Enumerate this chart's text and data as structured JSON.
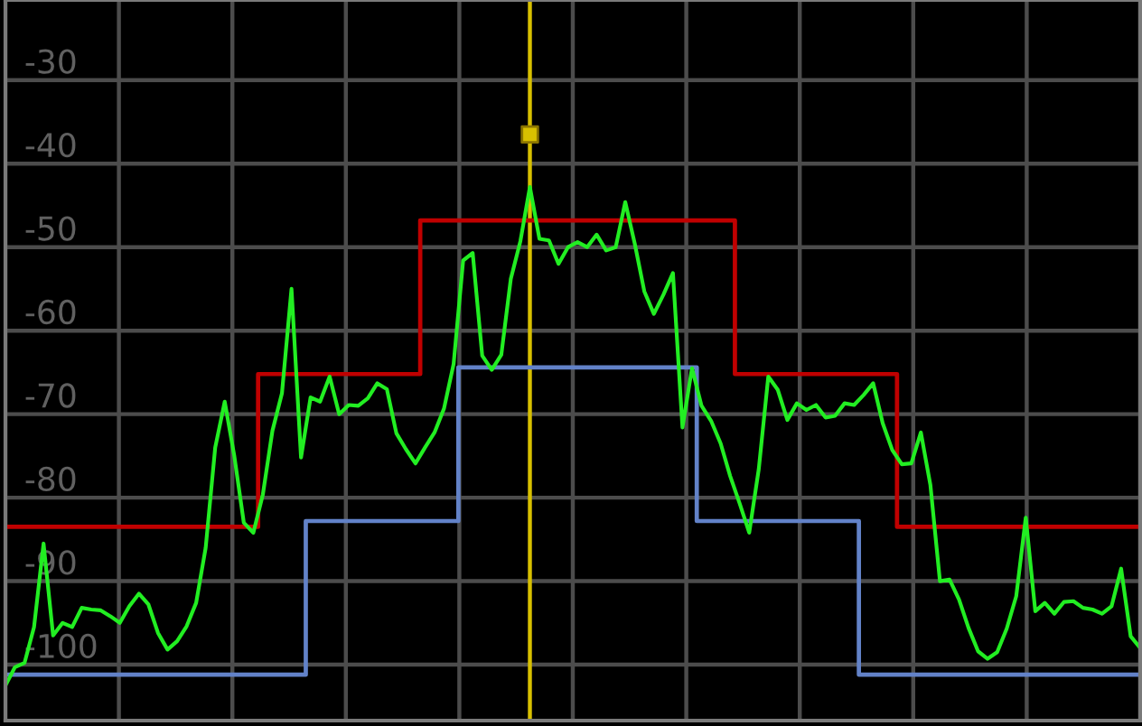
{
  "chart_data": {
    "type": "line",
    "categories": [
      null,
      null,
      null,
      null,
      null,
      null,
      null,
      null,
      null,
      null,
      null,
      null,
      null,
      null,
      null,
      null,
      null,
      null,
      null,
      null,
      null,
      null,
      null,
      null,
      null,
      null,
      null,
      null,
      null,
      null,
      null,
      null,
      null,
      null,
      null,
      null,
      null,
      null,
      null,
      null,
      null,
      null,
      null,
      null,
      null,
      null,
      null,
      null,
      null,
      null,
      null,
      null,
      null,
      null,
      null,
      null,
      null,
      null,
      null,
      null,
      null,
      null,
      null,
      null,
      null,
      null,
      null,
      null,
      null,
      null,
      null,
      null,
      null,
      null,
      null,
      null,
      null,
      null,
      null,
      null,
      null,
      null,
      null,
      null,
      null,
      null,
      null,
      null,
      null,
      null,
      null,
      null,
      null,
      null,
      null,
      null,
      null,
      null,
      null,
      null,
      null,
      null,
      null,
      null,
      null,
      null,
      null,
      null,
      null,
      null,
      null,
      null,
      null,
      null,
      null,
      null,
      null,
      null,
      null,
      null
    ],
    "series": [
      {
        "type": "step",
        "color": "#c00000",
        "values": [
          -83.5,
          -83.5,
          -83.5,
          -83.5,
          -83.5,
          -83.5,
          -83.5,
          -83.5,
          -83.5,
          -83.5,
          -83.5,
          -83.5,
          -83.5,
          -83.5,
          -83.5,
          -83.5,
          -83.5,
          -83.5,
          -83.5,
          -83.5,
          -83.5,
          -83.5,
          -83.5,
          -83.5,
          -83.5,
          -83.5,
          -83.5,
          -65.2,
          -65.2,
          -65.2,
          -65.2,
          -65.2,
          -65.2,
          -65.2,
          -65.2,
          -65.2,
          -65.2,
          -65.2,
          -65.2,
          -65.2,
          -65.2,
          -65.2,
          -65.2,
          -65.2,
          -46.8,
          -46.8,
          -46.8,
          -46.8,
          -46.8,
          -46.8,
          -46.8,
          -46.8,
          -46.8,
          -46.8,
          -46.8,
          -46.8,
          -46.8,
          -46.8,
          -46.8,
          -46.8,
          -46.8,
          -46.8,
          -46.8,
          -46.8,
          -46.8,
          -46.8,
          -46.8,
          -46.8,
          -46.8,
          -46.8,
          -46.8,
          -46.8,
          -46.8,
          -46.8,
          -46.8,
          -46.8,
          -46.8,
          -65.2,
          -65.2,
          -65.2,
          -65.2,
          -65.2,
          -65.2,
          -65.2,
          -65.2,
          -65.2,
          -65.2,
          -65.2,
          -65.2,
          -65.2,
          -65.2,
          -65.2,
          -65.2,
          -65.2,
          -83.5,
          -83.5,
          -83.5,
          -83.5,
          -83.5,
          -83.5,
          -83.5,
          -83.5,
          -83.5,
          -83.5,
          -83.5,
          -83.5,
          -83.5,
          -83.5,
          -83.5,
          -83.5,
          -83.5,
          -83.5,
          -83.5,
          -83.5,
          -83.5,
          -83.5,
          -83.5,
          -83.5,
          -83.5,
          -83.5
        ]
      },
      {
        "type": "step",
        "color": "#6282c8",
        "values": [
          -101.2,
          -101.2,
          -101.2,
          -101.2,
          -101.2,
          -101.2,
          -101.2,
          -101.2,
          -101.2,
          -101.2,
          -101.2,
          -101.2,
          -101.2,
          -101.2,
          -101.2,
          -101.2,
          -101.2,
          -101.2,
          -101.2,
          -101.2,
          -101.2,
          -101.2,
          -101.2,
          -101.2,
          -101.2,
          -101.2,
          -101.2,
          -101.2,
          -101.2,
          -101.2,
          -101.2,
          -101.2,
          -82.8,
          -82.8,
          -82.8,
          -82.8,
          -82.8,
          -82.8,
          -82.8,
          -82.8,
          -82.8,
          -82.8,
          -82.8,
          -82.8,
          -82.8,
          -82.8,
          -82.8,
          -82.8,
          -64.4,
          -64.4,
          -64.4,
          -64.4,
          -64.4,
          -64.4,
          -64.4,
          -64.4,
          -64.4,
          -64.4,
          -64.4,
          -64.4,
          -64.4,
          -64.4,
          -64.4,
          -64.4,
          -64.4,
          -64.4,
          -64.4,
          -64.4,
          -64.4,
          -64.4,
          -64.4,
          -64.4,
          -64.4,
          -82.8,
          -82.8,
          -82.8,
          -82.8,
          -82.8,
          -82.8,
          -82.8,
          -82.8,
          -82.8,
          -82.8,
          -82.8,
          -82.8,
          -82.8,
          -82.8,
          -82.8,
          -82.8,
          -82.8,
          -101.2,
          -101.2,
          -101.2,
          -101.2,
          -101.2,
          -101.2,
          -101.2,
          -101.2,
          -101.2,
          -101.2,
          -101.2,
          -101.2,
          -101.2,
          -101.2,
          -101.2,
          -101.2,
          -101.2,
          -101.2,
          -101.2,
          -101.2,
          -101.2,
          -101.2,
          -101.2,
          -101.2,
          -101.2,
          -101.2,
          -101.2,
          -101.2,
          -101.2,
          -101.2
        ]
      },
      {
        "color": "#22ee22",
        "values": [
          -102.5,
          -100.3,
          -99.8,
          -95.5,
          -85.5,
          -96.5,
          -95,
          -95.5,
          -93.2,
          -93.4,
          -93.5,
          -94.2,
          -95,
          -93,
          -91.5,
          -92.8,
          -96.2,
          -98.2,
          -97.2,
          -95.4,
          -92.6,
          -86,
          -74,
          -68.5,
          -75,
          -83,
          -84.2,
          -79.6,
          -72,
          -67.5,
          -55,
          -75.2,
          -68,
          -68.5,
          -65.5,
          -70,
          -68.9,
          -69,
          -68.1,
          -66.3,
          -67,
          -72.3,
          -74.2,
          -75.9,
          -74,
          -72.2,
          -69.3,
          -64,
          -51.6,
          -50.7,
          -63,
          -64.7,
          -62.9,
          -53.8,
          -49.3,
          -42.8,
          -49,
          -49.2,
          -52,
          -50,
          -49.4,
          -50,
          -48.5,
          -50.4,
          -50,
          -44.6,
          -49.6,
          -55.3,
          -58,
          -55.7,
          -53.1,
          -71.6,
          -64.5,
          -69,
          -70.8,
          -73.5,
          -77.4,
          -80.7,
          -84.2,
          -76.6,
          -65.5,
          -67.1,
          -70.7,
          -68.7,
          -69.5,
          -68.9,
          -70.4,
          -70.2,
          -68.7,
          -68.9,
          -67.7,
          -66.3,
          -71.1,
          -74.3,
          -76,
          -75.9,
          -72.2,
          -78.5,
          -90,
          -89.8,
          -92.2,
          -95.6,
          -98.4,
          -99.3,
          -98.5,
          -95.7,
          -91.8,
          -82.4,
          -93.6,
          -92.6,
          -93.9,
          -92.5,
          -92.4,
          -93.2,
          -93.4,
          -93.9,
          -93,
          -88.5,
          -96.6,
          -98
        ]
      },
      {
        "type": "scatter",
        "color": "#d8c000",
        "marker": "square",
        "values": [
          null,
          null,
          null,
          null,
          null,
          null,
          null,
          null,
          null,
          null,
          null,
          null,
          null,
          null,
          null,
          null,
          null,
          null,
          null,
          null,
          null,
          null,
          null,
          null,
          null,
          null,
          null,
          null,
          null,
          null,
          null,
          null,
          null,
          null,
          null,
          null,
          null,
          null,
          null,
          null,
          null,
          null,
          null,
          null,
          null,
          null,
          null,
          null,
          null,
          null,
          null,
          null,
          null,
          null,
          null,
          -36.5,
          null,
          null,
          null,
          null,
          null,
          null,
          null,
          null,
          null,
          null,
          null,
          null,
          null,
          null,
          null,
          null,
          null,
          null,
          null,
          null,
          null,
          null,
          null,
          null,
          null,
          null,
          null,
          null,
          null,
          null,
          null,
          null,
          null,
          null,
          null,
          null,
          null,
          null,
          null,
          null,
          null,
          null,
          null,
          null,
          null,
          null,
          null,
          null,
          null,
          null,
          null,
          null,
          null,
          null,
          null,
          null,
          null,
          null,
          null,
          null,
          null,
          null,
          null,
          null
        ]
      }
    ],
    "ylim": [
      -106.7,
      -20.4
    ],
    "yticks": [
      -30,
      -40,
      -50,
      -60,
      -70,
      -80,
      -90,
      -100
    ],
    "grid": true,
    "tick_labels": "y"
  }
}
